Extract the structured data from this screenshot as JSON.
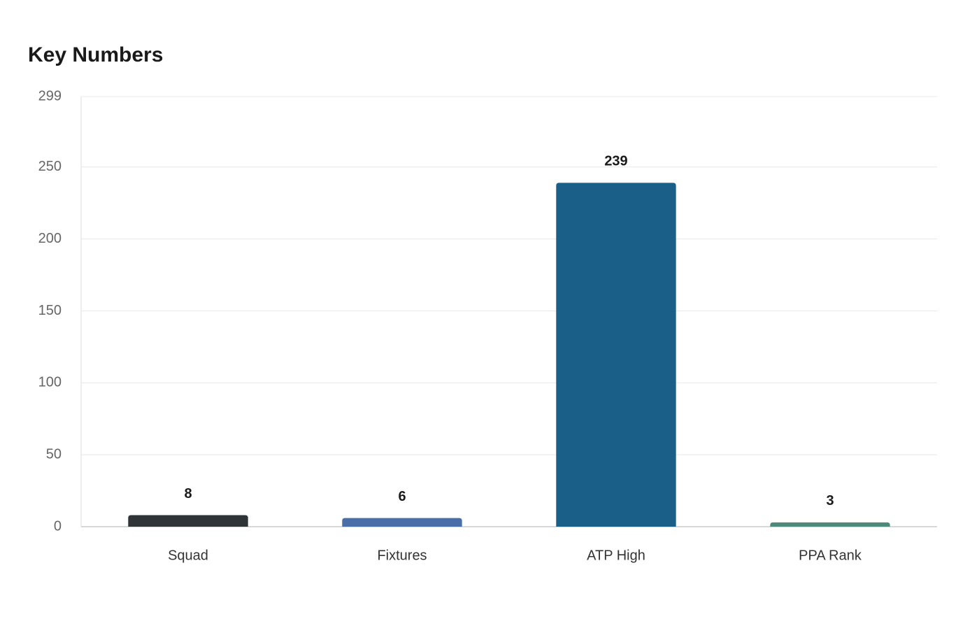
{
  "chart_data": {
    "type": "bar",
    "title": "Key Numbers",
    "categories": [
      "Squad",
      "Fixtures",
      "ATP High",
      "PPA Rank"
    ],
    "values": [
      8,
      6,
      239,
      3
    ],
    "colors": [
      "#2f3536",
      "#4a6fa8",
      "#1a5f87",
      "#4e8a7c"
    ],
    "ylim": [
      0,
      299
    ],
    "yticks": [
      0,
      50,
      100,
      150,
      200,
      250,
      299
    ],
    "grid": true
  }
}
